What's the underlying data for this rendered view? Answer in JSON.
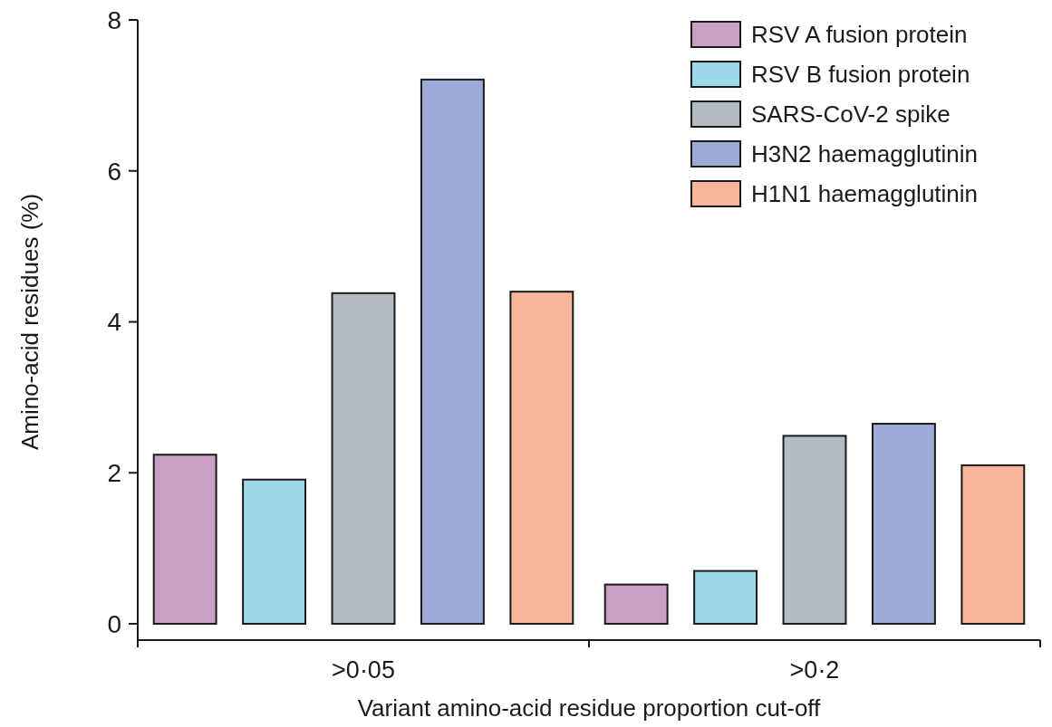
{
  "chart_data": {
    "type": "bar",
    "xlabel": "Variant amino-acid residue proportion cut-off",
    "ylabel": "Amino-acid residues (%)",
    "categories": [
      ">0·05",
      ">0·2"
    ],
    "series": [
      {
        "name": "RSV A fusion protein",
        "color": "#c9a0c3",
        "values": [
          2.24,
          0.52
        ]
      },
      {
        "name": "RSV B fusion protein",
        "color": "#9dd9ea",
        "values": [
          1.91,
          0.7
        ]
      },
      {
        "name": "SARS-CoV-2 spike",
        "color": "#b4bcc3",
        "values": [
          4.38,
          2.49
        ]
      },
      {
        "name": "H3N2 haemagglutinin",
        "color": "#9eaad6",
        "values": [
          7.21,
          2.65
        ]
      },
      {
        "name": "H1N1 haemagglutinin",
        "color": "#f8b79a",
        "values": [
          4.4,
          2.1
        ]
      }
    ],
    "ylim": [
      0,
      8
    ],
    "yticks": [
      0,
      2,
      4,
      6,
      8
    ],
    "grid": false,
    "legend": "top right"
  }
}
